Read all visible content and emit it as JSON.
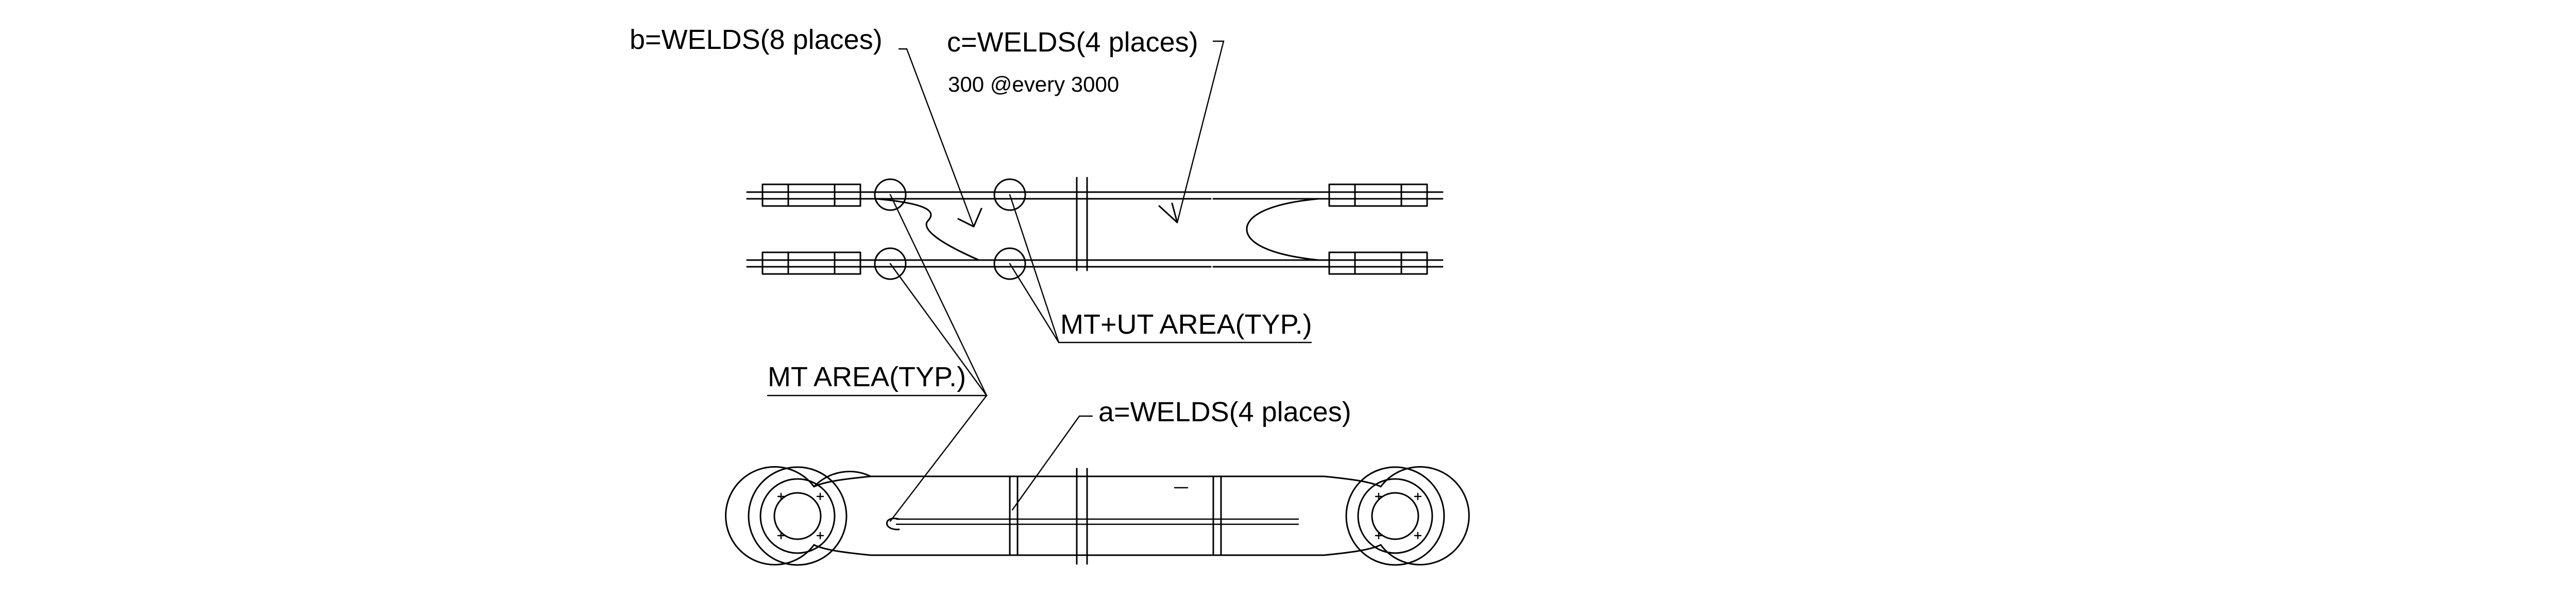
{
  "labels": {
    "b_welds": "b=WELDS(8 places)",
    "c_welds": "c=WELDS(4 places)",
    "c_spacing": "300 @every 3000",
    "mt_ut_area": "MT+UT AREA(TYP.)",
    "mt_area": "MT AREA(TYP.)",
    "a_welds": "a=WELDS(4 places)"
  },
  "views": [
    "plan-view",
    "elevation-view"
  ],
  "icons": [
    "pin-hole-left",
    "pin-hole-right",
    "inspection-circle"
  ]
}
